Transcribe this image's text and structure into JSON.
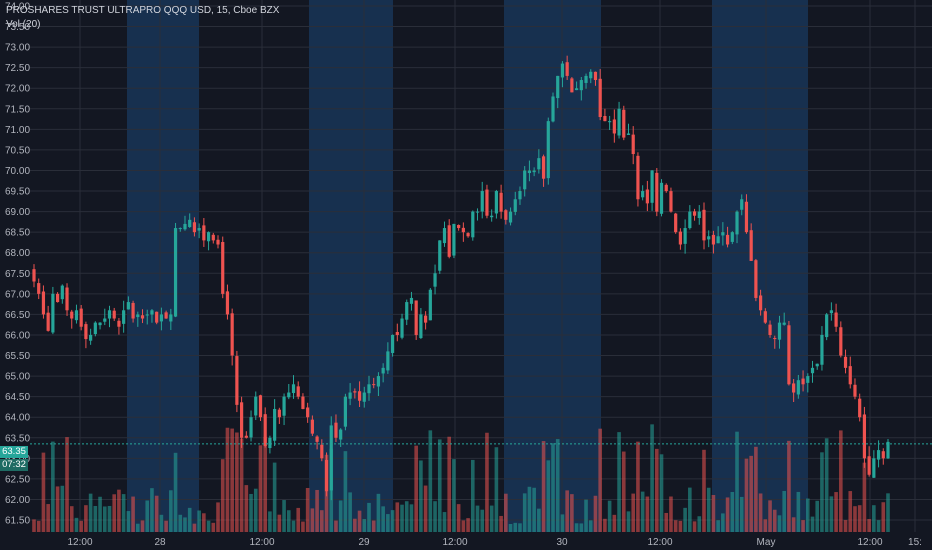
{
  "legend": {
    "title": "PROSHARES TRUST ULTRAPRO QQQ USD, 15, Cboe BZX",
    "volume": "Vol (20)"
  },
  "price_tags": {
    "last_price": "63.35",
    "countdown": "07:32"
  },
  "colors": {
    "background": "#131722",
    "session_band": "#17304f",
    "grid": "#2a2e39",
    "up": "#26a69a",
    "down": "#ef5350",
    "axis_text": "#b2b5be",
    "price_line": "#26a69a"
  },
  "chart_data": {
    "type": "candlestick",
    "y_axis": {
      "min": 61.5,
      "max": 74.0,
      "ticks": [
        "61.50",
        "62.00",
        "62.50",
        "63.00",
        "63.50",
        "64.00",
        "64.50",
        "65.00",
        "65.50",
        "66.00",
        "66.50",
        "67.00",
        "67.50",
        "68.00",
        "68.50",
        "69.00",
        "69.50",
        "70.00",
        "70.50",
        "71.00",
        "71.50",
        "72.00",
        "72.50",
        "73.00",
        "73.50",
        "74.00"
      ]
    },
    "x_axis": {
      "labels": [
        "12:00",
        "28",
        "12:00",
        "29",
        "12:00",
        "30",
        "12:00",
        "May",
        "12:00",
        "15:"
      ]
    },
    "last_price": 63.35,
    "grid": true,
    "extended_hours_shaded": true,
    "series": [
      {
        "name": "Price",
        "closes": [
          67.3,
          67.0,
          66.5,
          66.1,
          67.0,
          66.8,
          67.2,
          66.6,
          66.4,
          66.6,
          66.2,
          65.9,
          66.0,
          66.3,
          66.3,
          66.4,
          66.6,
          66.4,
          66.2,
          66.6,
          66.8,
          66.4,
          66.5,
          66.4,
          66.5,
          66.6,
          66.3,
          66.5,
          66.4,
          66.5,
          68.6,
          68.6,
          68.7,
          68.8,
          68.5,
          68.6,
          68.3,
          68.5,
          68.3,
          68.2,
          67.0,
          66.5,
          65.5,
          64.3,
          63.5,
          63.5,
          64.0,
          64.5,
          64.0,
          63.3,
          63.5,
          64.2,
          64.0,
          64.5,
          64.6,
          64.8,
          64.5,
          64.2,
          64.0,
          63.6,
          63.4,
          63.0,
          62.2,
          63.8,
          63.5,
          63.7,
          64.5,
          64.6,
          64.6,
          64.4,
          64.6,
          64.8,
          64.8,
          65.0,
          65.2,
          65.6,
          66.0,
          66.0,
          66.4,
          66.8,
          66.9,
          66.0,
          66.5,
          66.3,
          67.1,
          67.5,
          68.3,
          68.6,
          67.9,
          68.7,
          68.6,
          68.5,
          68.4,
          69.0,
          69.0,
          69.5,
          68.9,
          68.9,
          69.5,
          69.0,
          68.8,
          69.0,
          69.3,
          69.5,
          70.0,
          70.0,
          70.0,
          70.3,
          69.8,
          71.2,
          71.8,
          72.3,
          72.6,
          72.3,
          71.9,
          72.0,
          72.2,
          72.3,
          72.4,
          72.2,
          71.3,
          71.2,
          71.2,
          70.9,
          71.5,
          70.8,
          70.9,
          70.4,
          69.3,
          69.5,
          69.2,
          70.0,
          69.0,
          69.7,
          69.5,
          69.0,
          68.5,
          68.2,
          68.6,
          69.0,
          68.9,
          69.0,
          68.3,
          68.4,
          68.2,
          68.4,
          68.5,
          68.2,
          68.5,
          69.0,
          69.3,
          68.5,
          67.8,
          66.9,
          66.6,
          66.3,
          66.0,
          65.9,
          66.3,
          66.3,
          64.8,
          64.6,
          64.9,
          64.8,
          65.0,
          65.2,
          65.3,
          66.0,
          66.5,
          66.6,
          66.2,
          65.5,
          65.2,
          64.8,
          64.5,
          64.0,
          63.0,
          62.6,
          63.0,
          63.2,
          63.0,
          63.4
        ]
      }
    ]
  }
}
